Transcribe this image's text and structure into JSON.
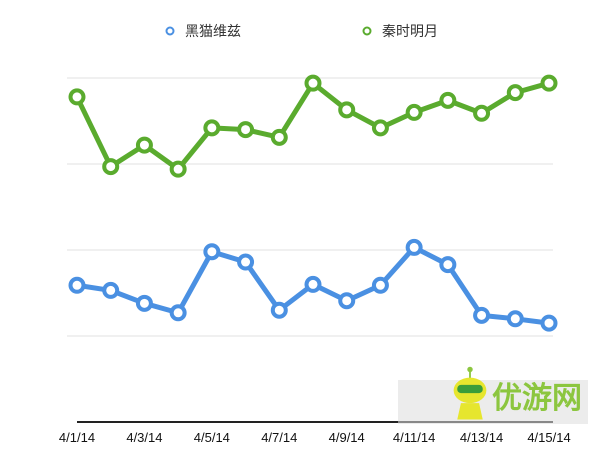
{
  "chart_data": {
    "type": "line",
    "title": "",
    "xlabel": "",
    "ylabel": "",
    "x": [
      "4/1/14",
      "4/2/14",
      "4/3/14",
      "4/4/14",
      "4/5/14",
      "4/6/14",
      "4/7/14",
      "4/8/14",
      "4/9/14",
      "4/10/14",
      "4/11/14",
      "4/12/14",
      "4/13/14",
      "4/14/14",
      "4/15/14"
    ],
    "tick_labels": [
      "4/1/14",
      "4/3/14",
      "4/5/14",
      "4/7/14",
      "4/9/14",
      "4/11/14",
      "4/13/14",
      "4/15/14"
    ],
    "ylim": [
      0,
      4.2
    ],
    "y_gridlines": [
      1,
      2,
      3,
      4
    ],
    "y_tick_labels_shown": false,
    "grid": true,
    "legend": "top",
    "series": [
      {
        "name": "黑猫维兹",
        "color": "#4a90e2",
        "values": [
          1.59,
          1.53,
          1.38,
          1.27,
          1.98,
          1.86,
          1.3,
          1.6,
          1.41,
          1.59,
          2.03,
          1.83,
          1.24,
          1.2,
          1.15
        ]
      },
      {
        "name": "秦时明月",
        "color": "#5aab2e",
        "values": [
          3.78,
          2.97,
          3.22,
          2.94,
          3.42,
          3.4,
          3.31,
          3.94,
          3.63,
          3.42,
          3.6,
          3.74,
          3.59,
          3.83,
          3.94
        ]
      }
    ]
  },
  "watermark": {
    "text": "优游网"
  }
}
